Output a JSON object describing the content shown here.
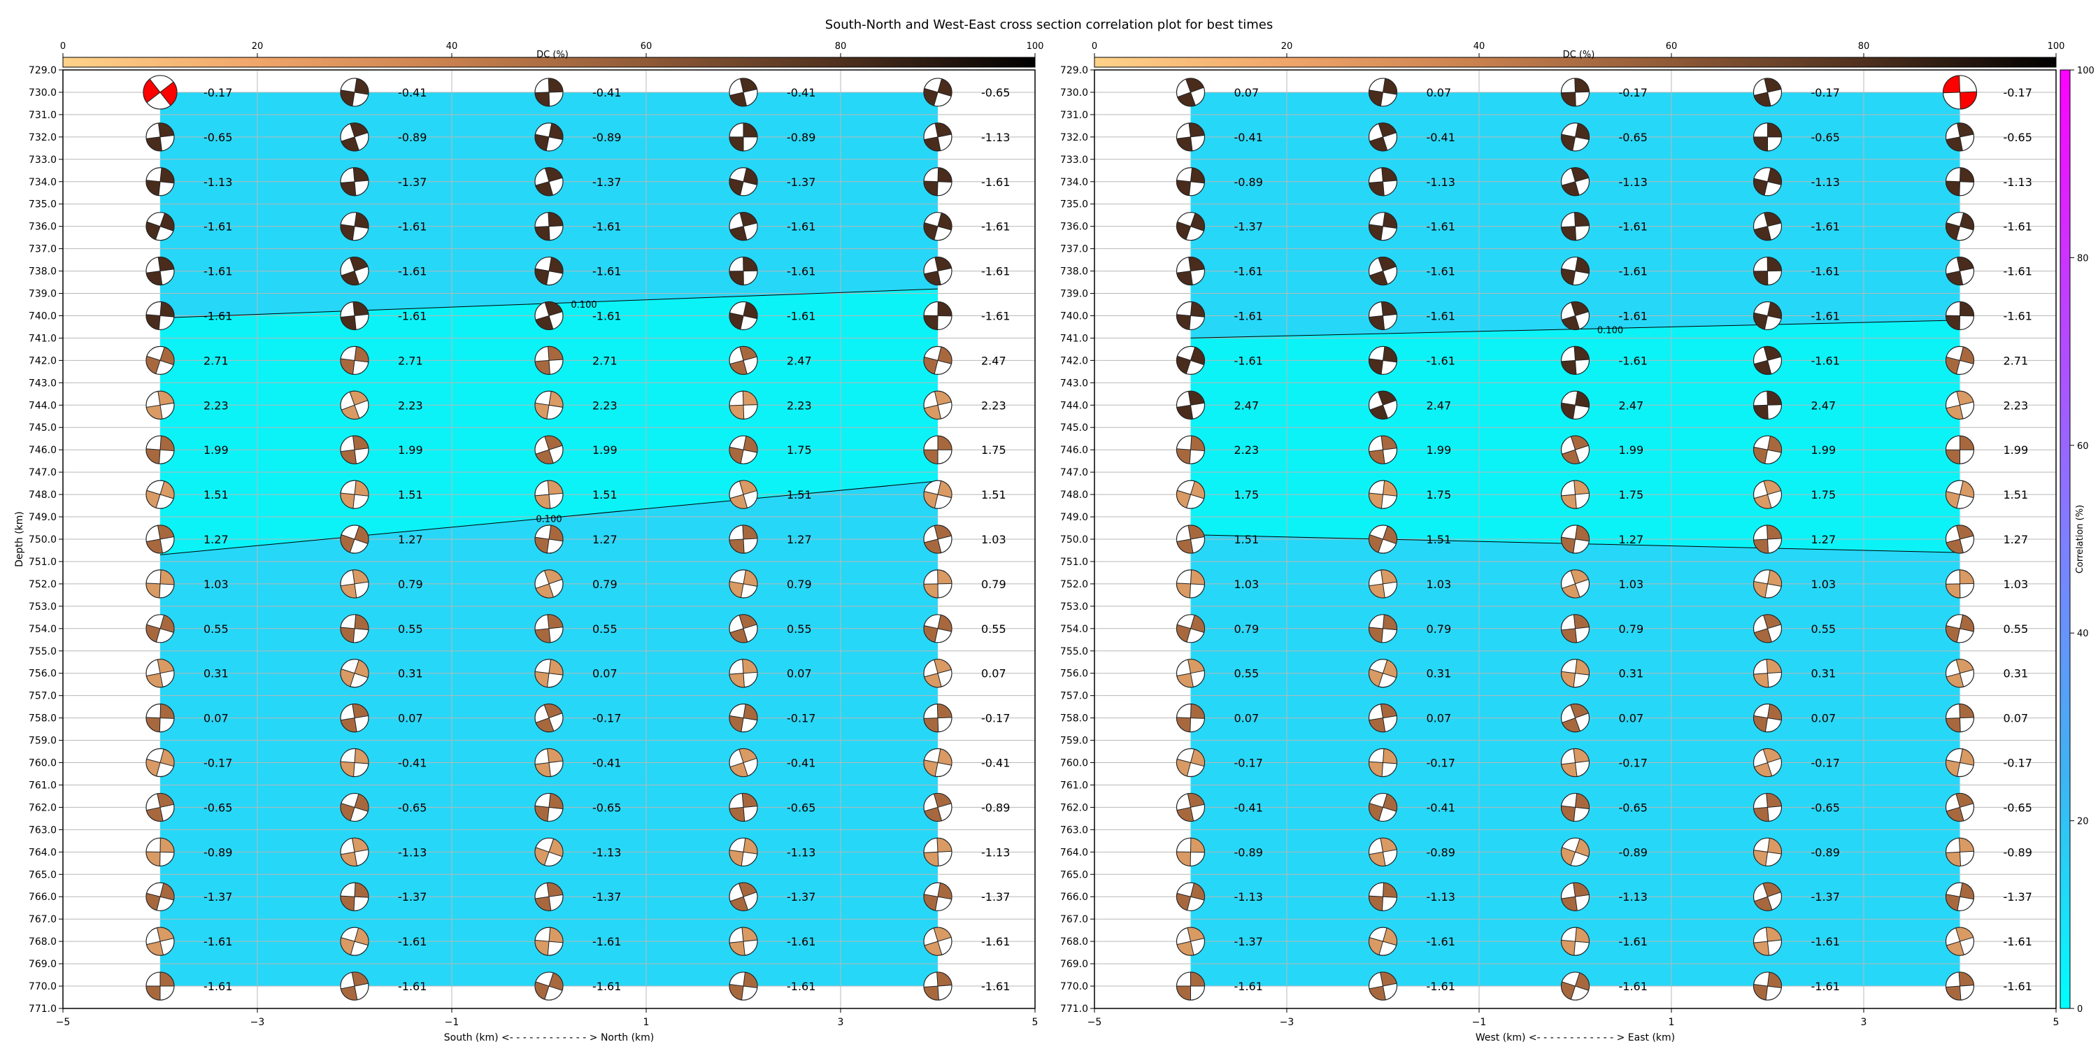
{
  "title": "South-North and West-East cross section correlation plot for best times",
  "colors": {
    "inversion_field": "#27d7f7",
    "gap_field": "#0bf3f7",
    "grid": "#b8b8b8",
    "beachball_fill_dark": "#4a2c1c",
    "beachball_fill_mid": "#a8683e",
    "beachball_fill_light": "#d99a63",
    "beachball_red": "#ff0000",
    "dc_colormap": [
      "#ffd38a",
      "#f0a56a",
      "#c8804e",
      "#8f5a37",
      "#4f301e",
      "#000000"
    ],
    "corr_colormap": [
      "#00ffff",
      "#3fb3f3",
      "#7f7fff",
      "#bf40ff",
      "#ff00ff"
    ]
  },
  "chart_data": [
    {
      "type": "scatter",
      "panel": "south-north",
      "xlabel": "South (km) <- - - - - - - - - - - - > North (km)",
      "ylabel": "Depth (km)",
      "xlim": [
        -5,
        5
      ],
      "ylim": [
        771,
        729
      ],
      "xticks": [
        "−5",
        "−3",
        "−1",
        "1",
        "3",
        "5"
      ],
      "yticks": [
        "729.0",
        "730.0",
        "731.0",
        "732.0",
        "733.0",
        "734.0",
        "735.0",
        "736.0",
        "737.0",
        "738.0",
        "739.0",
        "740.0",
        "741.0",
        "742.0",
        "743.0",
        "744.0",
        "745.0",
        "746.0",
        "747.0",
        "748.0",
        "749.0",
        "750.0",
        "751.0",
        "752.0",
        "753.0",
        "754.0",
        "755.0",
        "756.0",
        "757.0",
        "758.0",
        "759.0",
        "760.0",
        "761.0",
        "762.0",
        "763.0",
        "764.0",
        "765.0",
        "766.0",
        "767.0",
        "768.0",
        "769.0",
        "770.0",
        "771.0"
      ],
      "grid": true,
      "dc_colorbar": {
        "label": "DC (%)",
        "ticks": [
          "0",
          "20",
          "40",
          "60",
          "80",
          "100"
        ]
      },
      "x": [
        -4,
        -2,
        0,
        2,
        4
      ],
      "depths": [
        730,
        732,
        734,
        736,
        738,
        740,
        742,
        744,
        746,
        748,
        750,
        752,
        754,
        756,
        758,
        760,
        762,
        764,
        766,
        768,
        770
      ],
      "time_labels": [
        [
          "-0.17",
          "-0.41",
          "-0.41",
          "-0.41",
          "-0.65"
        ],
        [
          "-0.65",
          "-0.89",
          "-0.89",
          "-0.89",
          "-1.13"
        ],
        [
          "-1.13",
          "-1.37",
          "-1.37",
          "-1.37",
          "-1.61"
        ],
        [
          "-1.61",
          "-1.61",
          "-1.61",
          "-1.61",
          "-1.61"
        ],
        [
          "-1.61",
          "-1.61",
          "-1.61",
          "-1.61",
          "-1.61"
        ],
        [
          "-1.61",
          "-1.61",
          "-1.61",
          "-1.61",
          "-1.61"
        ],
        [
          "2.71",
          "2.71",
          "2.71",
          "2.47",
          "2.47"
        ],
        [
          "2.23",
          "2.23",
          "2.23",
          "2.23",
          "2.23"
        ],
        [
          "1.99",
          "1.99",
          "1.99",
          "1.75",
          "1.75"
        ],
        [
          "1.51",
          "1.51",
          "1.51",
          "1.51",
          "1.51"
        ],
        [
          "1.27",
          "1.27",
          "1.27",
          "1.27",
          "1.03"
        ],
        [
          "1.03",
          "0.79",
          "0.79",
          "0.79",
          "0.79"
        ],
        [
          "0.55",
          "0.55",
          "0.55",
          "0.55",
          "0.55"
        ],
        [
          "0.31",
          "0.31",
          "0.07",
          "0.07",
          "0.07"
        ],
        [
          "0.07",
          "0.07",
          "-0.17",
          "-0.17",
          "-0.17"
        ],
        [
          "-0.17",
          "-0.41",
          "-0.41",
          "-0.41",
          "-0.41"
        ],
        [
          "-0.65",
          "-0.65",
          "-0.65",
          "-0.65",
          "-0.89"
        ],
        [
          "-0.89",
          "-1.13",
          "-1.13",
          "-1.13",
          "-1.13"
        ],
        [
          "-1.37",
          "-1.37",
          "-1.37",
          "-1.37",
          "-1.37"
        ],
        [
          "-1.61",
          "-1.61",
          "-1.61",
          "-1.61",
          "-1.61"
        ],
        [
          "-1.61",
          "-1.61",
          "-1.61",
          "-1.61",
          "-1.61"
        ]
      ],
      "highlighted_mechanisms": [
        [
          730,
          -4
        ]
      ],
      "contour_level": "0.100",
      "contour_lines": [
        {
          "points": [
            [
              -4,
              740.1
            ],
            [
              4,
              738.8
            ]
          ]
        },
        {
          "points": [
            [
              -4,
              750.7
            ],
            [
              4,
              747.4
            ]
          ]
        }
      ]
    },
    {
      "type": "scatter",
      "panel": "west-east",
      "xlabel": "West (km) <- - - - - - - - - - - - > East (km)",
      "ylabel": "",
      "xlim": [
        -5,
        5
      ],
      "ylim": [
        771,
        729
      ],
      "xticks": [
        "−5",
        "−3",
        "−1",
        "1",
        "3",
        "5"
      ],
      "yticks": [
        "729.0",
        "730.0",
        "731.0",
        "732.0",
        "733.0",
        "734.0",
        "735.0",
        "736.0",
        "737.0",
        "738.0",
        "739.0",
        "740.0",
        "741.0",
        "742.0",
        "743.0",
        "744.0",
        "745.0",
        "746.0",
        "747.0",
        "748.0",
        "749.0",
        "750.0",
        "751.0",
        "752.0",
        "753.0",
        "754.0",
        "755.0",
        "756.0",
        "757.0",
        "758.0",
        "759.0",
        "760.0",
        "761.0",
        "762.0",
        "763.0",
        "764.0",
        "765.0",
        "766.0",
        "767.0",
        "768.0",
        "769.0",
        "770.0",
        "771.0"
      ],
      "grid": true,
      "dc_colorbar": {
        "label": "DC (%)",
        "ticks": [
          "0",
          "20",
          "40",
          "60",
          "80",
          "100"
        ]
      },
      "correlation_colorbar": {
        "label": "Correlation (%)",
        "ticks": [
          "0",
          "20",
          "40",
          "60",
          "80",
          "100"
        ]
      },
      "x": [
        -4,
        -2,
        0,
        2,
        4
      ],
      "depths": [
        730,
        732,
        734,
        736,
        738,
        740,
        742,
        744,
        746,
        748,
        750,
        752,
        754,
        756,
        758,
        760,
        762,
        764,
        766,
        768,
        770
      ],
      "time_labels": [
        [
          "0.07",
          "0.07",
          "-0.17",
          "-0.17",
          "-0.17"
        ],
        [
          "-0.41",
          "-0.41",
          "-0.65",
          "-0.65",
          "-0.65"
        ],
        [
          "-0.89",
          "-1.13",
          "-1.13",
          "-1.13",
          "-1.13"
        ],
        [
          "-1.37",
          "-1.61",
          "-1.61",
          "-1.61",
          "-1.61"
        ],
        [
          "-1.61",
          "-1.61",
          "-1.61",
          "-1.61",
          "-1.61"
        ],
        [
          "-1.61",
          "-1.61",
          "-1.61",
          "-1.61",
          "-1.61"
        ],
        [
          "-1.61",
          "-1.61",
          "-1.61",
          "-1.61",
          "2.71"
        ],
        [
          "2.47",
          "2.47",
          "2.47",
          "2.47",
          "2.23"
        ],
        [
          "2.23",
          "1.99",
          "1.99",
          "1.99",
          "1.99"
        ],
        [
          "1.75",
          "1.75",
          "1.75",
          "1.75",
          "1.51"
        ],
        [
          "1.51",
          "1.51",
          "1.27",
          "1.27",
          "1.27"
        ],
        [
          "1.03",
          "1.03",
          "1.03",
          "1.03",
          "1.03"
        ],
        [
          "0.79",
          "0.79",
          "0.79",
          "0.55",
          "0.55"
        ],
        [
          "0.55",
          "0.31",
          "0.31",
          "0.31",
          "0.31"
        ],
        [
          "0.07",
          "0.07",
          "0.07",
          "0.07",
          "0.07"
        ],
        [
          "-0.17",
          "-0.17",
          "-0.17",
          "-0.17",
          "-0.17"
        ],
        [
          "-0.41",
          "-0.41",
          "-0.65",
          "-0.65",
          "-0.65"
        ],
        [
          "-0.89",
          "-0.89",
          "-0.89",
          "-0.89",
          "-0.89"
        ],
        [
          "-1.13",
          "-1.13",
          "-1.13",
          "-1.37",
          "-1.37"
        ],
        [
          "-1.37",
          "-1.61",
          "-1.61",
          "-1.61",
          "-1.61"
        ],
        [
          "-1.61",
          "-1.61",
          "-1.61",
          "-1.61",
          "-1.61"
        ]
      ],
      "highlighted_mechanisms": [
        [
          730,
          4
        ]
      ],
      "contour_level": "0.100",
      "contour_lines": [
        {
          "points": [
            [
              -4,
              741.0
            ],
            [
              4,
              740.2
            ]
          ]
        },
        {
          "points": [
            [
              -4,
              749.8
            ],
            [
              4,
              750.6
            ]
          ]
        }
      ]
    }
  ]
}
